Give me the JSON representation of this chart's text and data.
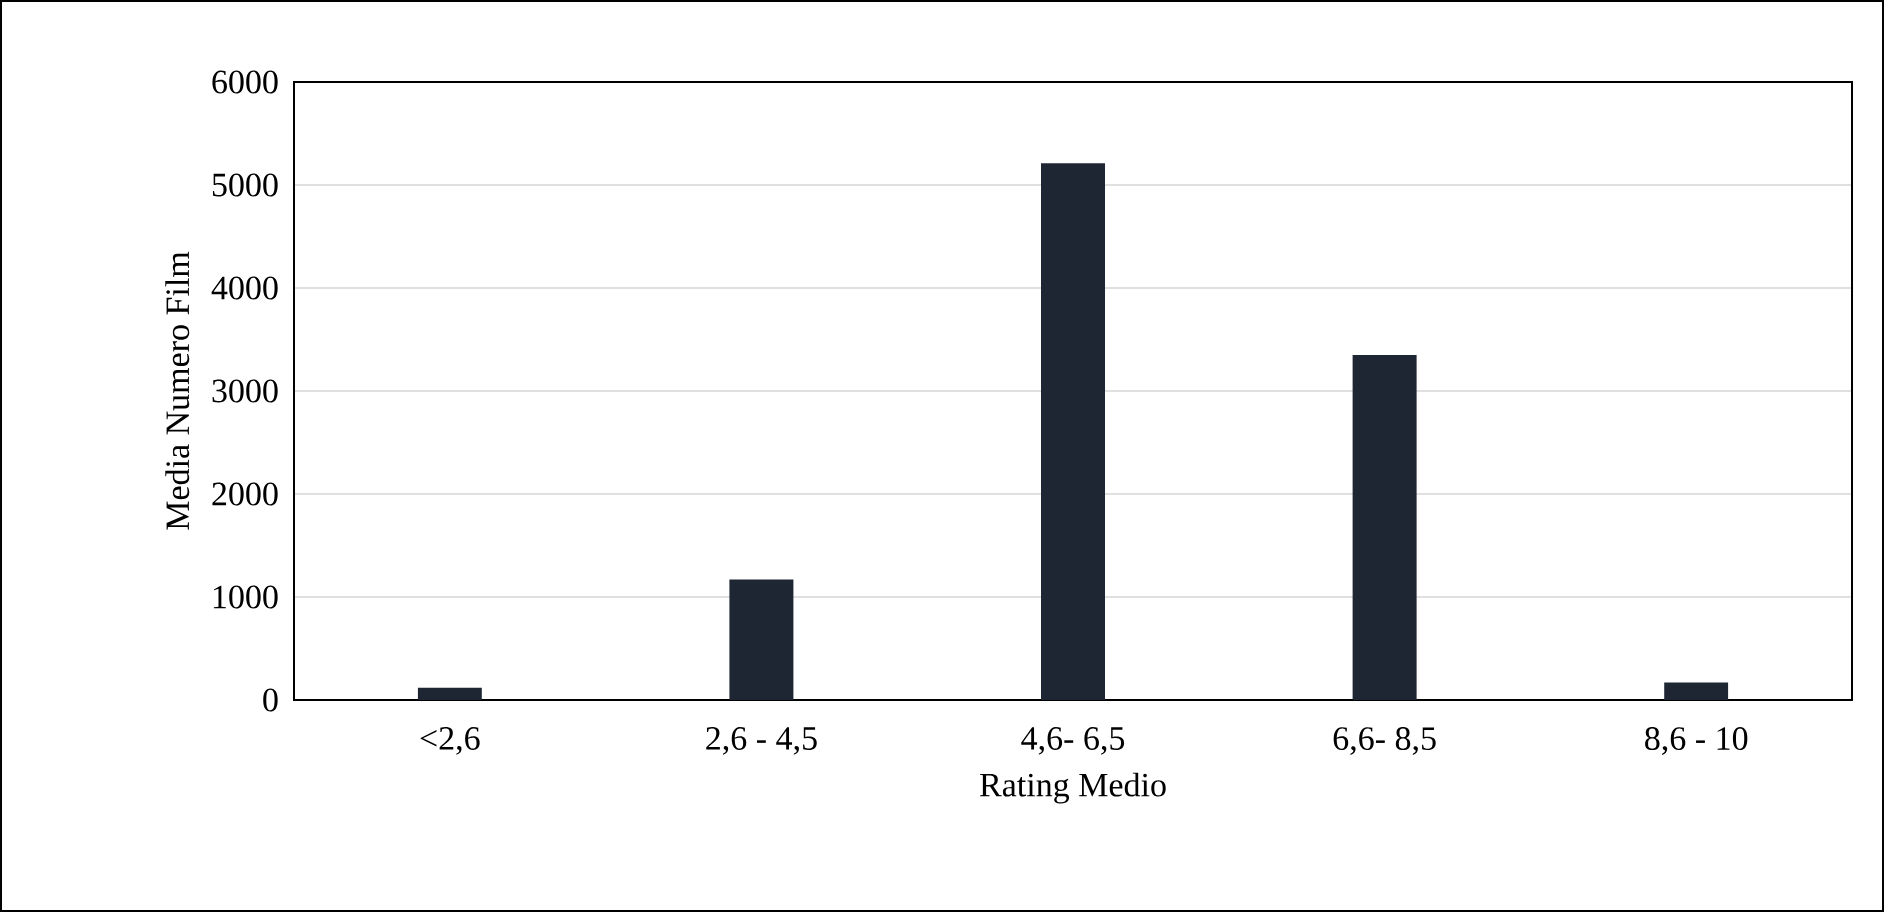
{
  "chart_data": {
    "type": "bar",
    "xlabel": "Rating Medio",
    "ylabel": "Media Numero Film",
    "categories": [
      "<2,6",
      "2,6 - 4,5",
      "4,6- 6,5",
      "6,6- 8,5",
      "8,6 - 10"
    ],
    "values": [
      120,
      1170,
      5210,
      3350,
      170
    ],
    "color": "#1f2633",
    "ylim": [
      0,
      6000
    ],
    "yticks": [
      0,
      1000,
      2000,
      3000,
      4000,
      5000,
      6000
    ],
    "grid": "y"
  }
}
